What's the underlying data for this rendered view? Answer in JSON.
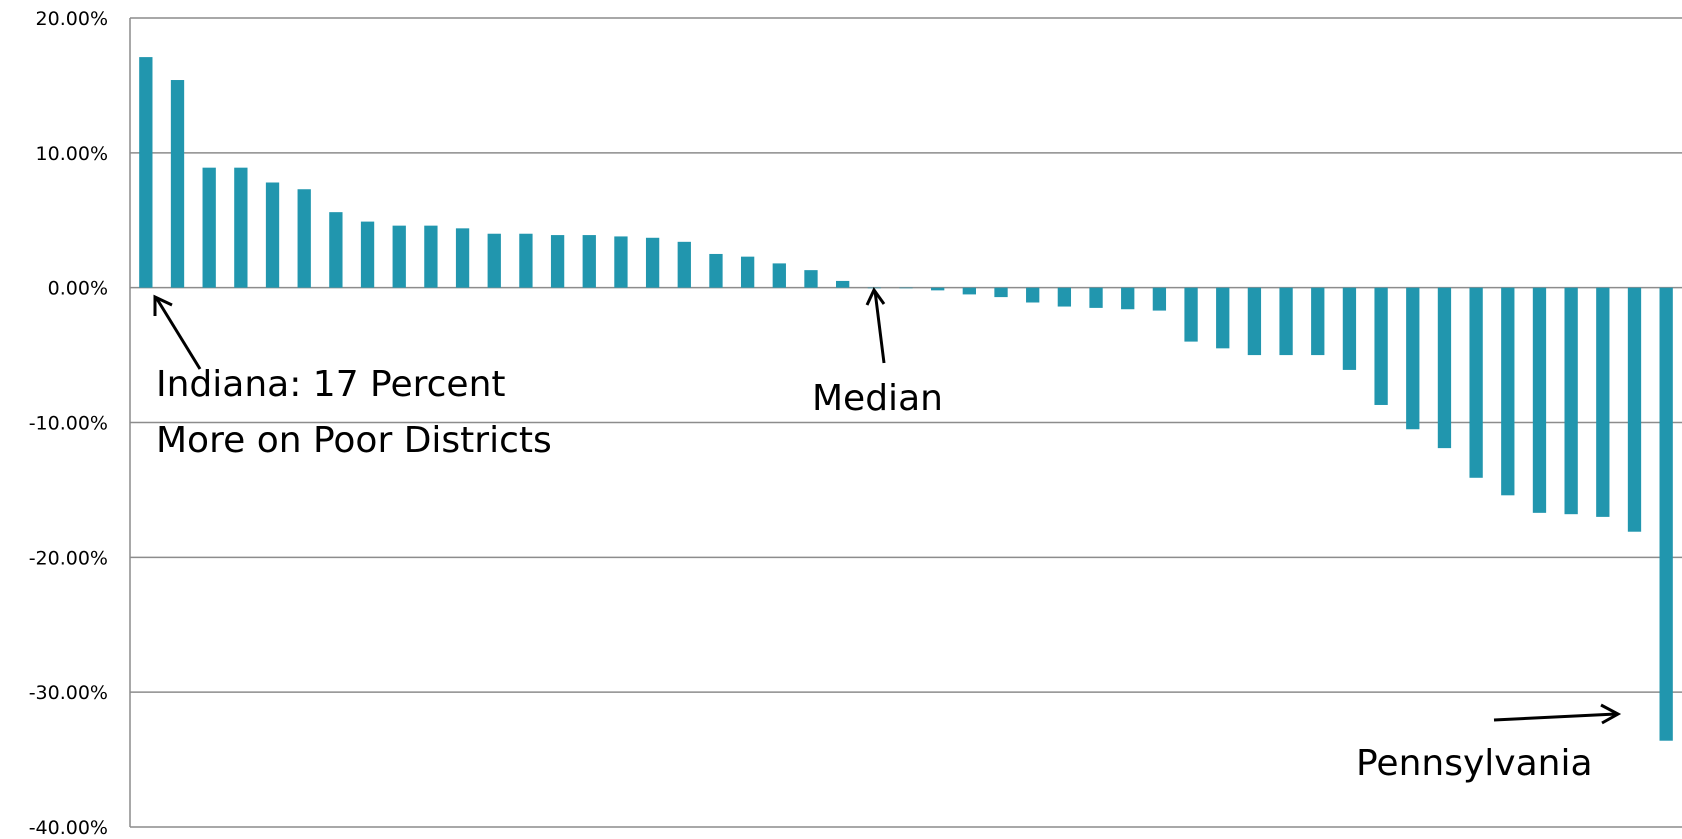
{
  "chart_data": {
    "type": "bar",
    "yticks": [
      "20.00%",
      "10.00%",
      "0.00%",
      "-10.00%",
      "-20.00%",
      "-30.00%",
      "-40.00%"
    ],
    "ylim": [
      -40,
      20
    ],
    "grid": true,
    "legend": "none",
    "values": [
      17.1,
      15.4,
      8.9,
      8.9,
      7.8,
      7.3,
      5.6,
      4.9,
      4.6,
      4.6,
      4.4,
      4.0,
      4.0,
      3.9,
      3.9,
      3.8,
      3.7,
      3.4,
      2.5,
      2.3,
      1.8,
      1.3,
      0.5,
      0.0,
      0.0,
      -0.2,
      -0.5,
      -0.7,
      -1.1,
      -1.4,
      -1.5,
      -1.6,
      -1.7,
      -4.0,
      -4.5,
      -5.0,
      -5.0,
      -5.0,
      -6.1,
      -8.7,
      -10.5,
      -11.9,
      -14.1,
      -15.4,
      -16.7,
      -16.8,
      -17.0,
      -18.1,
      -33.6
    ],
    "annotations": {
      "indiana_line1": "Indiana: 17 Percent",
      "indiana_line2": "More on Poor Districts",
      "median": "Median",
      "pennsylvania": "Pennsylvania"
    }
  },
  "colors": {
    "bar": "#2196AE",
    "grid": "#8C8C8C",
    "axis": "#8C8C8C",
    "text": "#000000"
  }
}
